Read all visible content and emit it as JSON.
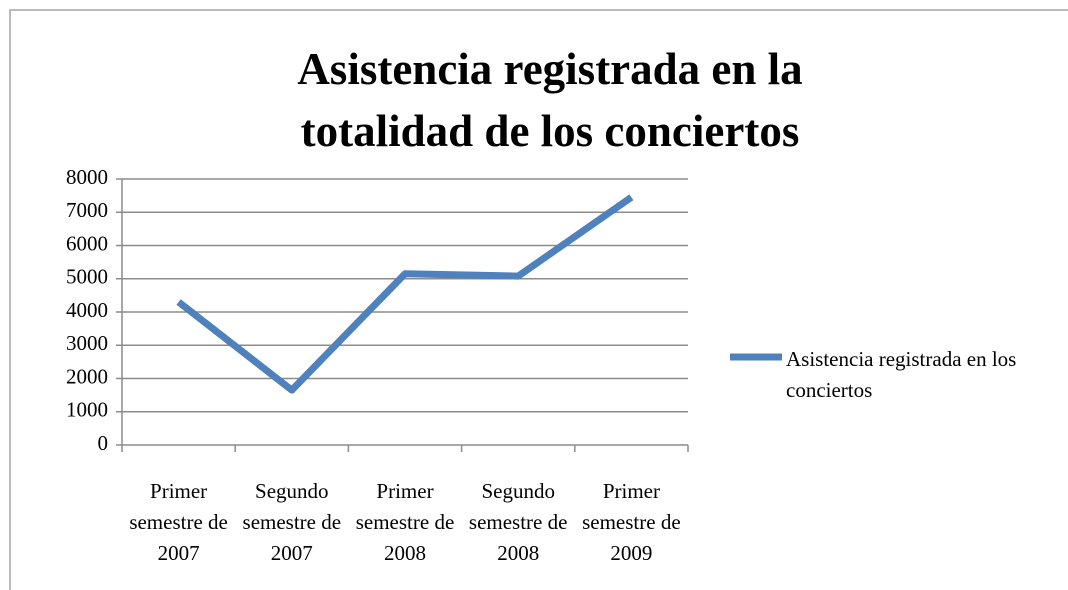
{
  "chart_data": {
    "type": "line",
    "title": "Asistencia registrada en la totalidad de los conciertos",
    "categories": [
      "Primer semestre de 2007",
      "Segundo semestre de 2007",
      "Primer semestre de 2008",
      "Segundo semestre de 2008",
      "Primer semestre de 2009"
    ],
    "series": [
      {
        "name": "Asistencia registrada en los conciertos",
        "color": "#4f81bd",
        "values": [
          4300,
          1650,
          5150,
          5080,
          7450
        ]
      }
    ],
    "ylim": [
      0,
      8000
    ],
    "yticks": [
      0,
      1000,
      2000,
      3000,
      4000,
      5000,
      6000,
      7000,
      8000
    ],
    "grid": true,
    "legend": "right"
  }
}
